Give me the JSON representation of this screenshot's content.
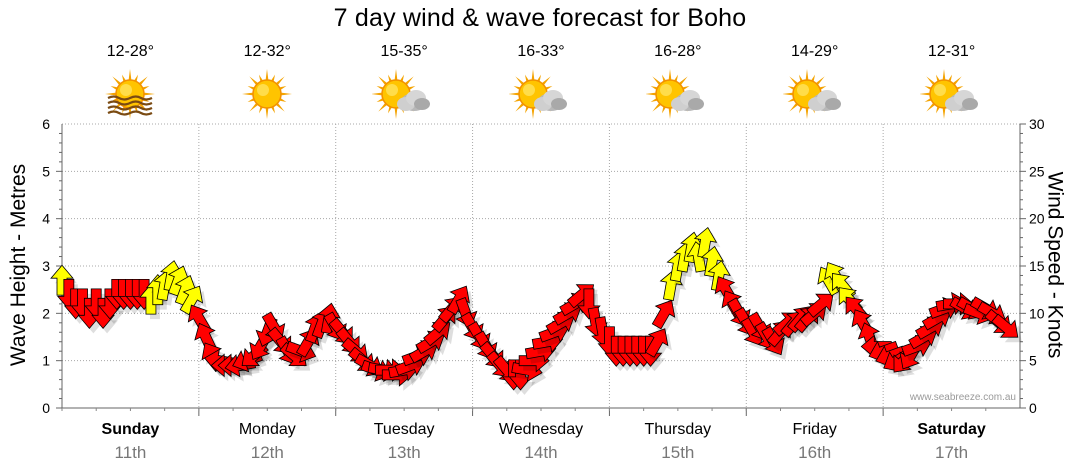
{
  "title": "7 day wind & wave forecast for Boho",
  "days": [
    {
      "name": "Sunday",
      "date": "11th",
      "temp": "12-28°",
      "icon": "sun-haze-icon",
      "bold": true
    },
    {
      "name": "Monday",
      "date": "12th",
      "temp": "12-32°",
      "icon": "sun-icon",
      "bold": false
    },
    {
      "name": "Tuesday",
      "date": "13th",
      "temp": "15-35°",
      "icon": "sun-cloud-icon",
      "bold": false
    },
    {
      "name": "Wednesday",
      "date": "14th",
      "temp": "16-33°",
      "icon": "sun-cloud-icon",
      "bold": false
    },
    {
      "name": "Thursday",
      "date": "15th",
      "temp": "16-28°",
      "icon": "sun-cloud-icon",
      "bold": false
    },
    {
      "name": "Friday",
      "date": "16th",
      "temp": "14-29°",
      "icon": "sun-cloud-icon",
      "bold": false
    },
    {
      "name": "Saturday",
      "date": "17th",
      "temp": "12-31°",
      "icon": "sun-cloud-icon",
      "bold": true
    }
  ],
  "watermark": "www.seabreeze.com.au",
  "colors": {
    "strong": "#ff0000",
    "light": "#ffff00",
    "grid": "#9a9a9a"
  },
  "chart_data": {
    "type": "scatter",
    "title": "7 day wind & wave forecast for Boho",
    "ylabel_left": "Wave Height - Metres",
    "ylabel_right": "Wind Speed - Knots",
    "ylim_left": [
      0,
      6
    ],
    "ylim_right": [
      0,
      30
    ],
    "y_ticks_left": [
      0,
      1,
      2,
      3,
      4,
      5,
      6
    ],
    "y_ticks_right": [
      0,
      5,
      10,
      15,
      20,
      25,
      30
    ],
    "grid": true,
    "x_categories": [
      "Sunday 11th",
      "Monday 12th",
      "Tuesday 13th",
      "Wednesday 14th",
      "Thursday 15th",
      "Friday 16th",
      "Saturday 17th"
    ],
    "note": "Wind arrows: position = wind speed (knots), arrow points toward wind direction of travel, red = stronger, yellow = lighter",
    "x_unit": "days",
    "wind": [
      [
        0.0,
        13.5,
        0,
        "light"
      ],
      [
        0.05,
        12.0,
        180,
        "strong"
      ],
      [
        0.1,
        11.0,
        180,
        "strong"
      ],
      [
        0.15,
        11.0,
        180,
        "strong"
      ],
      [
        0.2,
        10.0,
        180,
        "strong"
      ],
      [
        0.25,
        11.0,
        180,
        "strong"
      ],
      [
        0.3,
        10.0,
        180,
        "strong"
      ],
      [
        0.35,
        11.0,
        180,
        "strong"
      ],
      [
        0.4,
        12.0,
        180,
        "strong"
      ],
      [
        0.45,
        12.0,
        180,
        "strong"
      ],
      [
        0.5,
        12.0,
        180,
        "strong"
      ],
      [
        0.55,
        12.0,
        180,
        "strong"
      ],
      [
        0.6,
        12.0,
        180,
        "strong"
      ],
      [
        0.65,
        11.5,
        0,
        "light"
      ],
      [
        0.7,
        12.5,
        0,
        "light"
      ],
      [
        0.75,
        13.0,
        10,
        "light"
      ],
      [
        0.8,
        14.0,
        10,
        "light"
      ],
      [
        0.85,
        13.5,
        20,
        "light"
      ],
      [
        0.9,
        12.5,
        20,
        "light"
      ],
      [
        0.95,
        11.5,
        30,
        "light"
      ],
      [
        1.0,
        9.5,
        330,
        "strong"
      ],
      [
        1.05,
        7.5,
        335,
        "strong"
      ],
      [
        1.1,
        5.5,
        330,
        "strong"
      ],
      [
        1.15,
        5.0,
        280,
        "strong"
      ],
      [
        1.2,
        4.5,
        270,
        "strong"
      ],
      [
        1.25,
        4.5,
        270,
        "strong"
      ],
      [
        1.3,
        4.5,
        260,
        "strong"
      ],
      [
        1.35,
        5.0,
        250,
        "strong"
      ],
      [
        1.4,
        5.5,
        230,
        "strong"
      ],
      [
        1.45,
        6.5,
        210,
        "strong"
      ],
      [
        1.5,
        8.0,
        200,
        "strong"
      ],
      [
        1.55,
        8.5,
        150,
        "strong"
      ],
      [
        1.6,
        7.0,
        140,
        "strong"
      ],
      [
        1.65,
        6.0,
        150,
        "strong"
      ],
      [
        1.7,
        5.5,
        130,
        "strong"
      ],
      [
        1.75,
        6.0,
        110,
        "strong"
      ],
      [
        1.8,
        7.0,
        30,
        "strong"
      ],
      [
        1.85,
        8.5,
        20,
        "strong"
      ],
      [
        1.9,
        9.0,
        20,
        "strong"
      ],
      [
        1.95,
        9.5,
        10,
        "strong"
      ],
      [
        2.0,
        8.5,
        150,
        "strong"
      ],
      [
        2.05,
        8.0,
        140,
        "strong"
      ],
      [
        2.1,
        7.0,
        140,
        "strong"
      ],
      [
        2.15,
        6.0,
        130,
        "strong"
      ],
      [
        2.2,
        5.0,
        130,
        "strong"
      ],
      [
        2.25,
        4.5,
        120,
        "strong"
      ],
      [
        2.3,
        4.0,
        110,
        "strong"
      ],
      [
        2.35,
        4.0,
        100,
        "strong"
      ],
      [
        2.4,
        4.0,
        90,
        "strong"
      ],
      [
        2.45,
        3.5,
        90,
        "strong"
      ],
      [
        2.5,
        4.0,
        80,
        "strong"
      ],
      [
        2.55,
        4.5,
        70,
        "strong"
      ],
      [
        2.6,
        5.5,
        70,
        "strong"
      ],
      [
        2.65,
        6.0,
        60,
        "strong"
      ],
      [
        2.7,
        7.0,
        60,
        "strong"
      ],
      [
        2.75,
        8.0,
        50,
        "strong"
      ],
      [
        2.8,
        9.5,
        40,
        "strong"
      ],
      [
        2.85,
        10.5,
        40,
        "strong"
      ],
      [
        2.9,
        11.5,
        30,
        "strong"
      ],
      [
        2.95,
        10.0,
        160,
        "strong"
      ],
      [
        3.0,
        8.5,
        150,
        "strong"
      ],
      [
        3.05,
        7.5,
        150,
        "strong"
      ],
      [
        3.1,
        6.5,
        150,
        "strong"
      ],
      [
        3.15,
        5.5,
        140,
        "strong"
      ],
      [
        3.2,
        4.5,
        140,
        "strong"
      ],
      [
        3.25,
        4.0,
        140,
        "strong"
      ],
      [
        3.3,
        3.5,
        180,
        "strong"
      ],
      [
        3.35,
        3.5,
        180,
        "strong"
      ],
      [
        3.4,
        4.0,
        100,
        "strong"
      ],
      [
        3.45,
        5.0,
        90,
        "strong"
      ],
      [
        3.5,
        6.0,
        80,
        "strong"
      ],
      [
        3.55,
        7.0,
        80,
        "strong"
      ],
      [
        3.6,
        8.0,
        70,
        "strong"
      ],
      [
        3.65,
        9.0,
        60,
        "strong"
      ],
      [
        3.7,
        10.0,
        60,
        "strong"
      ],
      [
        3.75,
        11.0,
        60,
        "strong"
      ],
      [
        3.8,
        12.0,
        50,
        "strong"
      ],
      [
        3.85,
        11.0,
        180,
        "strong"
      ],
      [
        3.9,
        9.0,
        170,
        "strong"
      ],
      [
        3.95,
        8.0,
        170,
        "strong"
      ],
      [
        4.0,
        7.0,
        180,
        "strong"
      ],
      [
        4.05,
        6.0,
        180,
        "strong"
      ],
      [
        4.1,
        6.0,
        180,
        "strong"
      ],
      [
        4.15,
        6.0,
        180,
        "strong"
      ],
      [
        4.2,
        6.0,
        180,
        "strong"
      ],
      [
        4.25,
        6.0,
        180,
        "strong"
      ],
      [
        4.3,
        6.0,
        180,
        "strong"
      ],
      [
        4.35,
        7.0,
        30,
        "strong"
      ],
      [
        4.4,
        10.0,
        30,
        "strong"
      ],
      [
        4.45,
        13.0,
        10,
        "light"
      ],
      [
        4.5,
        15.0,
        10,
        "light"
      ],
      [
        4.55,
        16.0,
        10,
        "light"
      ],
      [
        4.6,
        17.0,
        10,
        "light"
      ],
      [
        4.65,
        16.0,
        350,
        "light"
      ],
      [
        4.7,
        17.5,
        10,
        "light"
      ],
      [
        4.75,
        15.5,
        10,
        "light"
      ],
      [
        4.8,
        14.0,
        10,
        "light"
      ],
      [
        4.85,
        12.5,
        330,
        "strong"
      ],
      [
        4.9,
        11.0,
        330,
        "strong"
      ],
      [
        4.95,
        10.0,
        150,
        "strong"
      ],
      [
        5.0,
        9.0,
        150,
        "strong"
      ],
      [
        5.05,
        8.0,
        150,
        "strong"
      ],
      [
        5.1,
        8.5,
        150,
        "strong"
      ],
      [
        5.15,
        7.5,
        150,
        "strong"
      ],
      [
        5.2,
        7.0,
        150,
        "strong"
      ],
      [
        5.25,
        8.0,
        40,
        "strong"
      ],
      [
        5.3,
        9.0,
        50,
        "strong"
      ],
      [
        5.35,
        9.0,
        40,
        "strong"
      ],
      [
        5.4,
        9.5,
        40,
        "strong"
      ],
      [
        5.45,
        9.5,
        40,
        "strong"
      ],
      [
        5.5,
        10.0,
        50,
        "strong"
      ],
      [
        5.55,
        11.0,
        50,
        "strong"
      ],
      [
        5.6,
        13.5,
        330,
        "light"
      ],
      [
        5.65,
        14.0,
        330,
        "light"
      ],
      [
        5.7,
        13.0,
        320,
        "light"
      ],
      [
        5.75,
        11.5,
        320,
        "light"
      ],
      [
        5.8,
        10.5,
        320,
        "strong"
      ],
      [
        5.85,
        9.0,
        330,
        "strong"
      ],
      [
        5.9,
        7.5,
        340,
        "strong"
      ],
      [
        5.95,
        6.5,
        270,
        "strong"
      ],
      [
        6.0,
        6.0,
        250,
        "strong"
      ],
      [
        6.05,
        5.5,
        250,
        "strong"
      ],
      [
        6.1,
        5.0,
        240,
        "strong"
      ],
      [
        6.15,
        5.0,
        220,
        "strong"
      ],
      [
        6.2,
        5.5,
        210,
        "strong"
      ],
      [
        6.25,
        6.5,
        70,
        "strong"
      ],
      [
        6.3,
        7.5,
        60,
        "strong"
      ],
      [
        6.35,
        8.5,
        60,
        "strong"
      ],
      [
        6.4,
        9.5,
        60,
        "strong"
      ],
      [
        6.45,
        10.5,
        70,
        "strong"
      ],
      [
        6.5,
        11.0,
        80,
        "strong"
      ],
      [
        6.55,
        11.0,
        90,
        "strong"
      ],
      [
        6.6,
        10.5,
        120,
        "strong"
      ],
      [
        6.65,
        10.5,
        120,
        "strong"
      ],
      [
        6.7,
        10.0,
        110,
        "strong"
      ],
      [
        6.75,
        10.5,
        120,
        "strong"
      ],
      [
        6.8,
        10.0,
        120,
        "strong"
      ],
      [
        6.85,
        9.0,
        130,
        "strong"
      ],
      [
        6.9,
        8.5,
        130,
        "strong"
      ]
    ]
  }
}
